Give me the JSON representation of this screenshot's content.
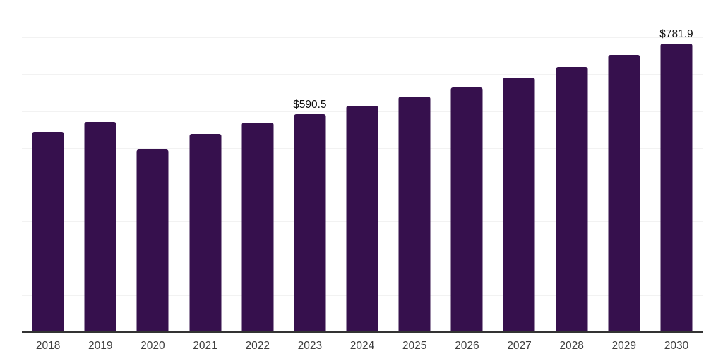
{
  "chart_data": {
    "type": "bar",
    "title": "",
    "xlabel": "",
    "ylabel": "",
    "categories": [
      "2018",
      "2019",
      "2020",
      "2021",
      "2022",
      "2023",
      "2024",
      "2025",
      "2026",
      "2027",
      "2028",
      "2029",
      "2030"
    ],
    "values": [
      542,
      569,
      494,
      536,
      566,
      590.5,
      612,
      638,
      662,
      689,
      718,
      750,
      781.9
    ],
    "point_labels": [
      "",
      "",
      "",
      "",
      "",
      "$590.5",
      "",
      "",
      "",
      "",
      "",
      "",
      "$781.9"
    ],
    "ylim": [
      0,
      900
    ],
    "grid": {
      "show": true,
      "orientation": "horizontal",
      "interval": 100
    },
    "legend": {
      "show": false
    },
    "colors": {
      "bar": "#36104D",
      "gridline": "#F2F2F2",
      "axis_line": "#333333",
      "value_label": "#111111",
      "tick_label": "#3D3D3D",
      "background": "#FFFFFF"
    }
  }
}
